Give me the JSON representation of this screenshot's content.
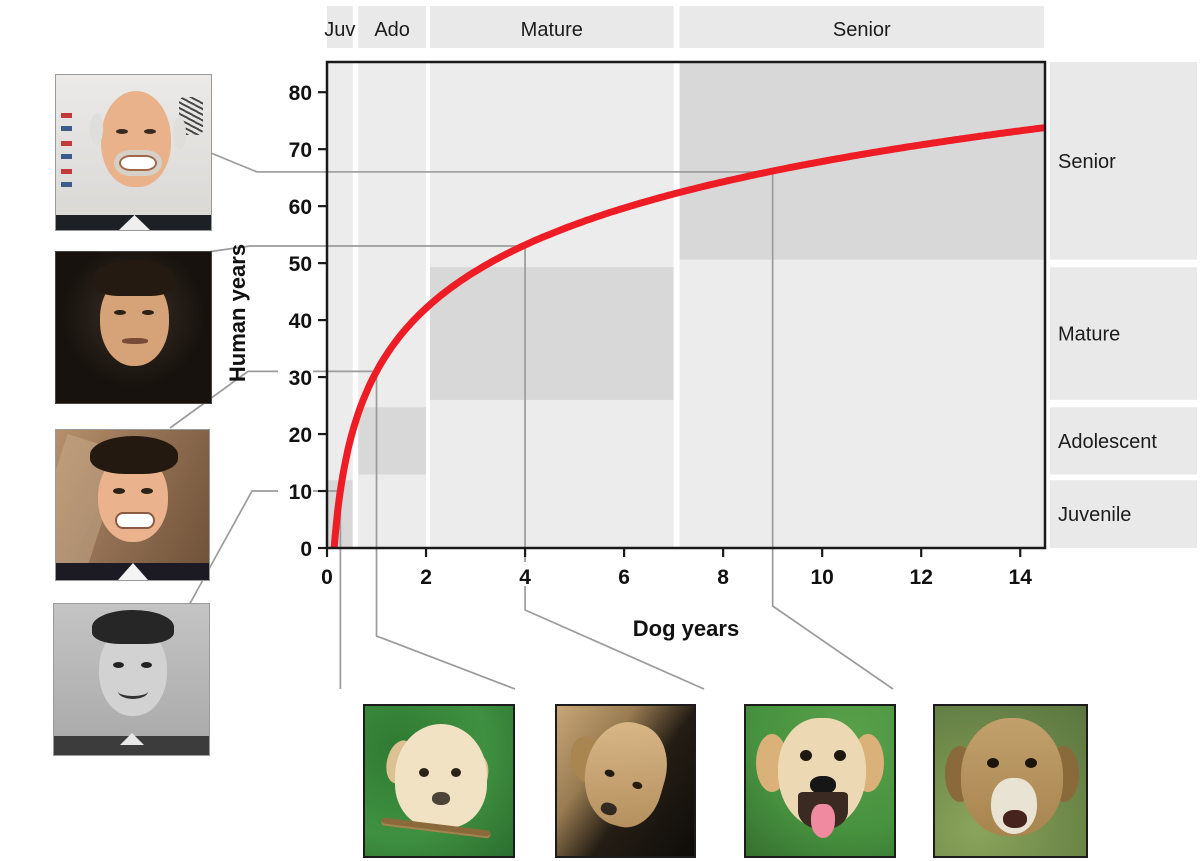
{
  "figure": {
    "background": "#ffffff"
  },
  "chart_data": {
    "type": "line",
    "title": "",
    "xlabel": "Dog years",
    "ylabel": "Human years",
    "x_ticks": [
      0,
      2,
      4,
      6,
      8,
      10,
      12,
      14
    ],
    "y_ticks": [
      0,
      10,
      20,
      30,
      40,
      50,
      60,
      70,
      80
    ],
    "xlim": [
      0,
      14.5
    ],
    "ylim": [
      0,
      85.3
    ],
    "grid": false,
    "legend": null,
    "curve": {
      "formula": "human_years = 16 * ln(dog_years) + 31",
      "slope": 16,
      "intercept": 31,
      "x_start": 0.145,
      "x_end": 14.48,
      "color": "#ee1c24",
      "width": 7
    },
    "curve_samples": {
      "dog_years": [
        0.25,
        0.5,
        1,
        2,
        3,
        4,
        5,
        6,
        7,
        8,
        9,
        10,
        11,
        12,
        13,
        14
      ],
      "human_years": [
        8.8,
        19.9,
        31,
        42.1,
        48.6,
        53.2,
        56.7,
        59.7,
        62.1,
        64.3,
        66.2,
        67.8,
        69.4,
        70.8,
        72.0,
        73.2
      ]
    },
    "dog_stages": [
      {
        "label": "Juv",
        "range": [
          0,
          0.52
        ]
      },
      {
        "label": "Ado",
        "range": [
          0.63,
          2.0
        ]
      },
      {
        "label": "Mature",
        "range": [
          2.08,
          7.0
        ]
      },
      {
        "label": "Senior",
        "range": [
          7.12,
          14.48
        ]
      }
    ],
    "human_stages": [
      {
        "label": "Juvenile",
        "range": [
          0,
          11.9
        ]
      },
      {
        "label": "Adolescent",
        "range": [
          12.9,
          24.7
        ]
      },
      {
        "label": "Mature",
        "range": [
          26,
          49.3
        ]
      },
      {
        "label": "Senior",
        "range": [
          50.6,
          85.3
        ]
      }
    ],
    "reference_points": [
      {
        "dog_years": 0.27,
        "human_years": 10
      },
      {
        "dog_years": 1,
        "human_years": 31
      },
      {
        "dog_years": 4,
        "human_years": 53
      },
      {
        "dog_years": 9,
        "human_years": 66
      }
    ],
    "colors": {
      "band_fill": "#e9e9e9",
      "plot_fill": "#ececec",
      "match_cell_fill": "#d8d8d8",
      "connector": "#9b9b9b",
      "axis": "#1a1a1a",
      "tick_text": "#111111",
      "stage_text": "#1c1c1c"
    }
  },
  "photos": {
    "humans": [
      {
        "id": "human-juvenile",
        "description": "boy about 10 years old, black-and-white school photo",
        "maps_to_human_years": 10
      },
      {
        "id": "human-adult",
        "description": "man in his early 30s, smiling, tousled dark hair",
        "maps_to_human_years": 31
      },
      {
        "id": "human-mature",
        "description": "man in his 50s, dark hair, dark background",
        "maps_to_human_years": 53
      },
      {
        "id": "human-senior",
        "description": "man in his 60s, gray hair and goatee, smiling",
        "maps_to_human_years": 66
      }
    ],
    "dogs": [
      {
        "id": "dog-puppy",
        "description": "Labrador puppy on grass chewing a stick",
        "maps_to_dog_years": 0.27
      },
      {
        "id": "dog-adolescent",
        "description": "young Labrador looking down, dark background",
        "maps_to_dog_years": 1
      },
      {
        "id": "dog-mature",
        "description": "adult yellow Labrador panting on grass",
        "maps_to_dog_years": 4
      },
      {
        "id": "dog-senior",
        "description": "senior Labrador with graying muzzle on grass",
        "maps_to_dog_years": 9
      }
    ]
  }
}
